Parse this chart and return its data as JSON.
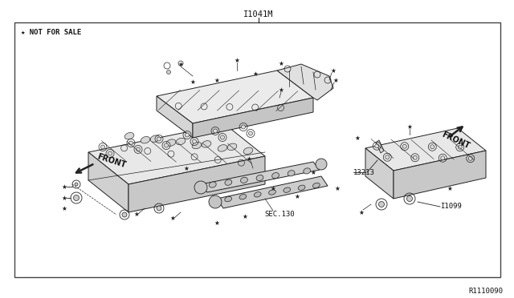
{
  "bg_color": "#ffffff",
  "border_color": "#444444",
  "text_color": "#111111",
  "line_color": "#222222",
  "title_above": "I1041M",
  "watermark": "★ NOT FOR SALE",
  "part_ref_bottom_right": "R1110090",
  "labels": {
    "front_left": "FRONT",
    "front_right": "FRONT",
    "sec130": "SEC.130",
    "part_13213": "13213",
    "part_I1099": "I1099"
  },
  "fig_width": 6.4,
  "fig_height": 3.72,
  "dpi": 100
}
